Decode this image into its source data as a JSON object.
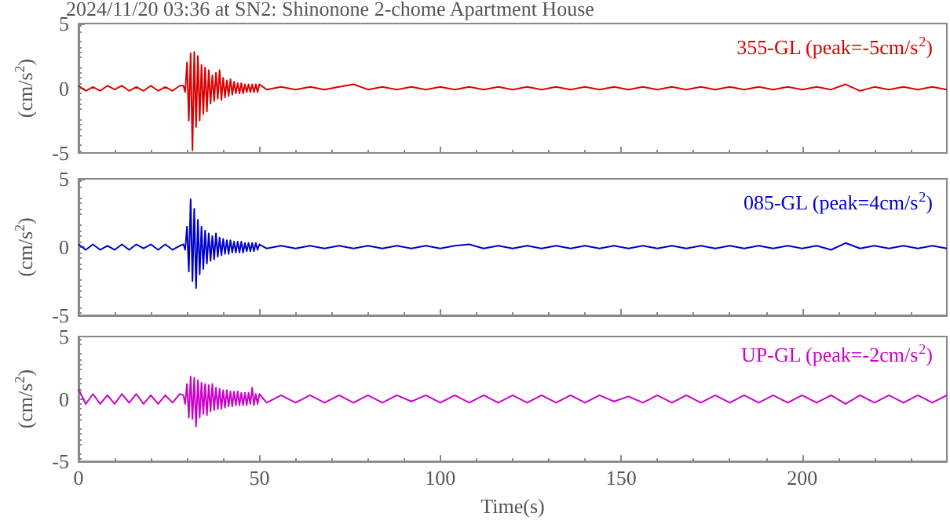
{
  "chart_data": [
    {
      "type": "line",
      "title": "2024/11/20 03:36 at SN2: Shinonone 2-chome Apartment House",
      "ylabel": "(cm/s$^{2}$)",
      "x": [
        0,
        2,
        4,
        6,
        8,
        10,
        12,
        14,
        16,
        18,
        20,
        22,
        24,
        26,
        28,
        29,
        29.5,
        30,
        30.5,
        31,
        31.5,
        32,
        32.5,
        33,
        33.5,
        34,
        34.5,
        35,
        35.5,
        36,
        36.5,
        37,
        37.5,
        38,
        38.5,
        39,
        39.5,
        40,
        40.5,
        41,
        41.5,
        42,
        42.5,
        43,
        43.5,
        44,
        44.5,
        45,
        45.5,
        46,
        46.5,
        47,
        47.5,
        48,
        48.5,
        49,
        49.5,
        50,
        52,
        56,
        60,
        64,
        68,
        72,
        76,
        80,
        84,
        88,
        92,
        96,
        100,
        104,
        108,
        112,
        116,
        120,
        124,
        128,
        132,
        136,
        140,
        144,
        148,
        152,
        156,
        160,
        164,
        168,
        172,
        176,
        180,
        184,
        188,
        192,
        196,
        200,
        204,
        208,
        212,
        216,
        220,
        224,
        228,
        232,
        236,
        240
      ],
      "series": [
        {
          "name": "355-GL (peak=-5cm/s$^{2}$)",
          "color": "#dd0000",
          "values": [
            0.2,
            -0.2,
            0.1,
            -0.2,
            0.2,
            -0.1,
            0.2,
            -0.2,
            0.1,
            -0.2,
            0.2,
            -0.2,
            0.1,
            -0.2,
            0.2,
            0.2,
            -0.3,
            2.0,
            -2.5,
            2.7,
            -4.8,
            2.8,
            -3.0,
            2.5,
            -2.5,
            1.8,
            -2.0,
            1.6,
            -1.8,
            1.4,
            -1.2,
            1.0,
            -1.0,
            1.2,
            -0.8,
            1.4,
            -0.9,
            0.8,
            -0.7,
            0.6,
            -0.6,
            0.7,
            -0.5,
            0.5,
            -0.4,
            0.4,
            -0.4,
            0.4,
            -0.4,
            0.3,
            -0.3,
            0.3,
            -0.3,
            0.3,
            -0.3,
            0.3,
            -0.3,
            0.3,
            -0.1,
            0.1,
            -0.1,
            0.1,
            -0.1,
            0.1,
            0.3,
            -0.1,
            0.1,
            -0.1,
            0.1,
            -0.1,
            0.1,
            -0.1,
            0.1,
            -0.1,
            0.1,
            -0.1,
            0.1,
            -0.1,
            0.1,
            -0.1,
            0.1,
            -0.1,
            0.1,
            -0.1,
            0.1,
            -0.1,
            0.1,
            -0.1,
            0.1,
            -0.1,
            0.1,
            -0.1,
            0.1,
            -0.1,
            0.1,
            -0.1,
            0.1,
            -0.1,
            0.3,
            -0.2,
            0.1,
            -0.1,
            0.1,
            -0.1,
            0.1,
            -0.1
          ]
        }
      ],
      "xlim": [
        0,
        240
      ],
      "xticks": [
        0,
        50,
        100,
        150,
        200
      ],
      "ylim": [
        -5,
        5
      ],
      "yticks": [
        -5,
        0,
        5
      ],
      "tick_labels": "y",
      "legend": "top right",
      "grid": false,
      "marker": "none"
    },
    {
      "type": "line",
      "ylabel": "(cm/s$^{2}$)",
      "x": [
        0,
        2,
        4,
        6,
        8,
        10,
        12,
        14,
        16,
        18,
        20,
        22,
        24,
        26,
        28,
        29,
        29.5,
        30,
        30.5,
        31,
        31.5,
        32,
        32.5,
        33,
        33.5,
        34,
        34.5,
        35,
        35.5,
        36,
        36.5,
        37,
        37.5,
        38,
        38.5,
        39,
        39.5,
        40,
        40.5,
        41,
        41.5,
        42,
        42.5,
        43,
        43.5,
        44,
        44.5,
        45,
        45.5,
        46,
        46.5,
        47,
        47.5,
        48,
        48.5,
        49,
        49.5,
        50,
        52,
        56,
        60,
        64,
        68,
        72,
        76,
        80,
        84,
        88,
        92,
        96,
        100,
        104,
        108,
        112,
        116,
        120,
        124,
        128,
        132,
        136,
        140,
        144,
        148,
        152,
        156,
        160,
        164,
        168,
        172,
        176,
        180,
        184,
        188,
        192,
        196,
        200,
        204,
        208,
        212,
        216,
        220,
        224,
        228,
        232,
        236,
        240
      ],
      "series": [
        {
          "name": "085-GL (peak=4cm/s$^{2}$)",
          "color": "#0000cc",
          "values": [
            0.2,
            -0.2,
            0.2,
            -0.2,
            0.1,
            -0.2,
            0.2,
            -0.2,
            0.2,
            -0.1,
            0.2,
            -0.2,
            0.2,
            -0.2,
            0.1,
            0.2,
            -0.2,
            1.5,
            -1.8,
            3.5,
            -2.5,
            2.8,
            -3.0,
            2.0,
            -2.0,
            1.5,
            -1.6,
            1.2,
            -1.2,
            1.0,
            -1.0,
            0.8,
            -0.9,
            1.0,
            -0.7,
            0.7,
            -0.6,
            0.6,
            -0.5,
            0.5,
            -0.5,
            0.5,
            -0.4,
            0.4,
            -0.4,
            0.4,
            -0.4,
            0.4,
            -0.4,
            0.3,
            -0.3,
            0.3,
            -0.3,
            0.3,
            -0.3,
            0.3,
            -0.2,
            0.2,
            -0.1,
            0.1,
            -0.1,
            0.1,
            -0.1,
            0.1,
            -0.1,
            0.1,
            -0.1,
            0.1,
            -0.1,
            0.1,
            -0.1,
            0.1,
            0.2,
            -0.1,
            0.1,
            -0.1,
            0.1,
            -0.1,
            0.1,
            -0.1,
            0.1,
            -0.1,
            0.1,
            -0.1,
            0.1,
            -0.1,
            0.1,
            -0.1,
            0.1,
            -0.1,
            0.1,
            -0.1,
            0.1,
            -0.1,
            0.1,
            -0.1,
            0.1,
            -0.2,
            0.3,
            -0.1,
            0.1,
            -0.1,
            0.1,
            -0.1,
            0.1,
            -0.1
          ]
        }
      ],
      "xlim": [
        0,
        240
      ],
      "xticks": [
        0,
        50,
        100,
        150,
        200
      ],
      "ylim": [
        -5,
        5
      ],
      "yticks": [
        -5,
        0,
        5
      ],
      "tick_labels": "y",
      "legend": "top right",
      "grid": false,
      "marker": "none"
    },
    {
      "type": "line",
      "ylabel": "(cm/s$^{2}$)",
      "xlabel": "Time(s)",
      "x": [
        0,
        2,
        4,
        6,
        8,
        10,
        12,
        14,
        16,
        18,
        20,
        22,
        24,
        26,
        28,
        29,
        29.5,
        30,
        30.5,
        31,
        31.5,
        32,
        32.5,
        33,
        33.5,
        34,
        34.5,
        35,
        35.5,
        36,
        36.5,
        37,
        37.5,
        38,
        38.5,
        39,
        39.5,
        40,
        40.5,
        41,
        41.5,
        42,
        42.5,
        43,
        43.5,
        44,
        44.5,
        45,
        45.5,
        46,
        46.5,
        47,
        47.5,
        48,
        48.5,
        49,
        49.5,
        50,
        52,
        56,
        60,
        64,
        68,
        72,
        76,
        80,
        84,
        88,
        92,
        96,
        100,
        104,
        108,
        112,
        116,
        120,
        124,
        128,
        132,
        136,
        140,
        144,
        148,
        152,
        156,
        160,
        164,
        168,
        172,
        176,
        180,
        184,
        188,
        192,
        196,
        200,
        204,
        208,
        212,
        216,
        220,
        224,
        228,
        232,
        236,
        240
      ],
      "series": [
        {
          "name": "UP-GL (peak=-2cm/s$^{2}$)",
          "color": "#cc00cc",
          "values": [
            0.8,
            -0.4,
            0.4,
            -0.4,
            0.3,
            -0.4,
            0.4,
            -0.3,
            0.4,
            -0.4,
            0.3,
            -0.4,
            0.3,
            -0.3,
            0.4,
            0.3,
            -0.4,
            1.2,
            -1.5,
            1.8,
            -1.6,
            1.7,
            -2.2,
            1.5,
            -1.5,
            1.3,
            -1.2,
            1.2,
            -1.3,
            1.1,
            -1.0,
            1.2,
            -0.9,
            0.9,
            -0.8,
            0.8,
            -0.8,
            0.7,
            -0.7,
            0.7,
            -0.6,
            0.6,
            -0.6,
            0.6,
            -0.5,
            0.6,
            -0.5,
            0.5,
            -0.5,
            0.5,
            -0.5,
            0.5,
            -0.4,
            0.9,
            -0.5,
            0.4,
            -0.4,
            0.4,
            -0.3,
            0.3,
            -0.3,
            0.3,
            -0.3,
            0.3,
            -0.3,
            0.3,
            -0.3,
            0.3,
            -0.2,
            0.3,
            -0.3,
            0.3,
            -0.3,
            0.3,
            -0.3,
            0.3,
            -0.3,
            0.3,
            -0.3,
            0.3,
            -0.3,
            0.3,
            -0.2,
            0.2,
            -0.3,
            0.3,
            -0.3,
            0.3,
            -0.3,
            0.3,
            -0.3,
            0.3,
            -0.3,
            0.3,
            -0.3,
            0.3,
            -0.3,
            0.3,
            -0.4,
            0.3,
            -0.3,
            0.3,
            -0.3,
            0.3,
            -0.3,
            0.3
          ]
        }
      ],
      "xlim": [
        0,
        240
      ],
      "xticks": [
        0,
        50,
        100,
        150,
        200
      ],
      "ylim": [
        -5,
        5
      ],
      "yticks": [
        -5,
        0,
        5
      ],
      "legend": "top right",
      "grid": false,
      "marker": "none"
    }
  ]
}
